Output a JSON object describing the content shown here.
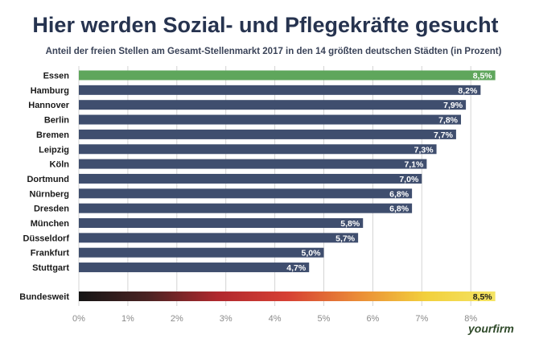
{
  "chart_data": {
    "type": "bar",
    "orientation": "horizontal",
    "title": "Hier werden Sozial- und Pflegekräfte gesucht",
    "subtitle": "Anteil der freien Stellen am Gesamt-Stellenmarkt 2017 in den 14 größten deutschen  Städten (in Prozent)",
    "categories": [
      "Essen",
      "Hamburg",
      "Hannover",
      "Berlin",
      "Bremen",
      "Leipzig",
      "Köln",
      "Dortmund",
      "Nürnberg",
      "Dresden",
      "München",
      "Düsseldorf",
      "Frankfurt",
      "Stuttgart"
    ],
    "values": [
      8.5,
      8.2,
      7.9,
      7.8,
      7.7,
      7.3,
      7.1,
      7.0,
      6.8,
      6.8,
      5.8,
      5.7,
      5.0,
      4.7
    ],
    "value_labels": [
      "8,5%",
      "8,2%",
      "7,9%",
      "7,8%",
      "7,7%",
      "7,3%",
      "7,1%",
      "7,0%",
      "6,8%",
      "6,8%",
      "5,8%",
      "5,7%",
      "5,0%",
      "4,7%"
    ],
    "total": {
      "label": "Bundesweit",
      "value": 8.5,
      "value_label": "8,5%"
    },
    "xlim": [
      0,
      8.9
    ],
    "ticks": [
      0,
      1,
      2,
      3,
      4,
      5,
      6,
      7,
      8
    ],
    "tick_labels": [
      "0%",
      "1%",
      "2%",
      "3%",
      "4%",
      "5%",
      "6%",
      "7%",
      "8%"
    ],
    "grid": true,
    "colors": {
      "highlight": "#5fa65c",
      "bar": "#3f4e6e",
      "gradient": [
        "#151515",
        "#4b2323",
        "#b0282e",
        "#d64034",
        "#ea8a36",
        "#f2d03c",
        "#f4e465"
      ],
      "grid": "#d4d4d4"
    }
  },
  "branding": {
    "logo": "yourfirm"
  }
}
